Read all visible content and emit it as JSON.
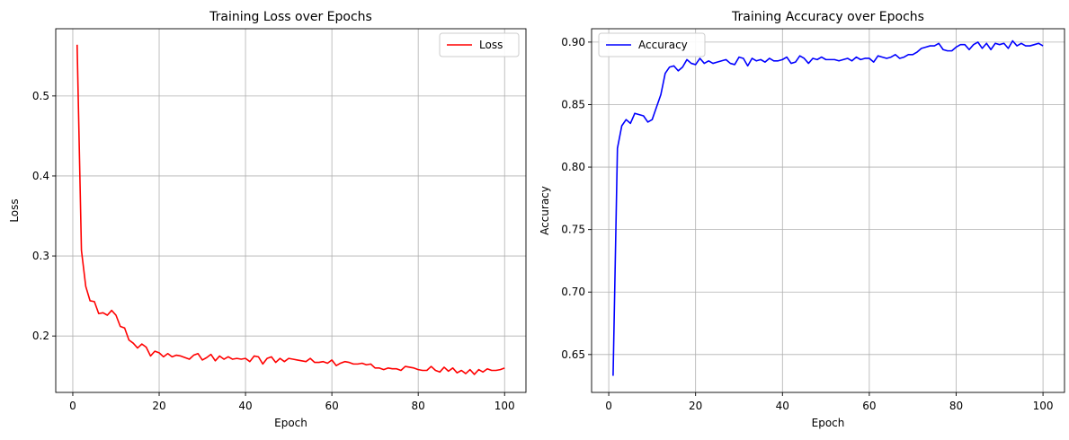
{
  "chart_data": [
    {
      "type": "line",
      "title": "Training Loss over Epochs",
      "xlabel": "Epoch",
      "ylabel": "Loss",
      "xlim": [
        -3.95,
        104.95
      ],
      "ylim": [
        0.1295,
        0.584
      ],
      "xticks": [
        0,
        20,
        40,
        60,
        80,
        100
      ],
      "yticks": [
        0.2,
        0.3,
        0.4,
        0.5
      ],
      "xtick_labels": [
        "0",
        "20",
        "40",
        "60",
        "80",
        "100"
      ],
      "ytick_labels": [
        "0.2",
        "0.3",
        "0.4",
        "0.5"
      ],
      "grid": true,
      "legend_position": "top-right",
      "series": [
        {
          "name": "Loss",
          "color": "#ff0000",
          "x": [
            1,
            2,
            3,
            4,
            5,
            6,
            7,
            8,
            9,
            10,
            11,
            12,
            13,
            14,
            15,
            16,
            17,
            18,
            19,
            20,
            21,
            22,
            23,
            24,
            25,
            26,
            27,
            28,
            29,
            30,
            31,
            32,
            33,
            34,
            35,
            36,
            37,
            38,
            39,
            40,
            41,
            42,
            43,
            44,
            45,
            46,
            47,
            48,
            49,
            50,
            51,
            52,
            53,
            54,
            55,
            56,
            57,
            58,
            59,
            60,
            61,
            62,
            63,
            64,
            65,
            66,
            67,
            68,
            69,
            70,
            71,
            72,
            73,
            74,
            75,
            76,
            77,
            78,
            79,
            80,
            81,
            82,
            83,
            84,
            85,
            86,
            87,
            88,
            89,
            90,
            91,
            92,
            93,
            94,
            95,
            96,
            97,
            98,
            99,
            100
          ],
          "values": [
            0.564,
            0.307,
            0.262,
            0.244,
            0.243,
            0.228,
            0.229,
            0.226,
            0.232,
            0.226,
            0.212,
            0.21,
            0.195,
            0.191,
            0.185,
            0.19,
            0.186,
            0.175,
            0.181,
            0.179,
            0.174,
            0.178,
            0.174,
            0.176,
            0.175,
            0.173,
            0.171,
            0.176,
            0.178,
            0.17,
            0.173,
            0.177,
            0.169,
            0.175,
            0.171,
            0.174,
            0.171,
            0.172,
            0.171,
            0.172,
            0.168,
            0.175,
            0.174,
            0.165,
            0.172,
            0.174,
            0.167,
            0.172,
            0.168,
            0.172,
            0.171,
            0.17,
            0.169,
            0.168,
            0.172,
            0.167,
            0.167,
            0.168,
            0.166,
            0.17,
            0.163,
            0.166,
            0.168,
            0.167,
            0.165,
            0.165,
            0.166,
            0.164,
            0.165,
            0.16,
            0.16,
            0.158,
            0.16,
            0.159,
            0.159,
            0.157,
            0.162,
            0.161,
            0.16,
            0.158,
            0.157,
            0.157,
            0.162,
            0.157,
            0.155,
            0.161,
            0.156,
            0.16,
            0.154,
            0.157,
            0.153,
            0.158,
            0.152,
            0.158,
            0.155,
            0.159,
            0.157,
            0.157,
            0.158,
            0.16
          ]
        }
      ]
    },
    {
      "type": "line",
      "title": "Training Accuracy over Epochs",
      "xlabel": "Epoch",
      "ylabel": "Accuracy",
      "xlim": [
        -3.95,
        104.95
      ],
      "ylim": [
        0.6197,
        0.9107
      ],
      "xticks": [
        0,
        20,
        40,
        60,
        80,
        100
      ],
      "yticks": [
        0.65,
        0.7,
        0.75,
        0.8,
        0.85,
        0.9
      ],
      "xtick_labels": [
        "0",
        "20",
        "40",
        "60",
        "80",
        "100"
      ],
      "ytick_labels": [
        "0.65",
        "0.70",
        "0.75",
        "0.80",
        "0.85",
        "0.90"
      ],
      "grid": true,
      "legend_position": "top-left",
      "series": [
        {
          "name": "Accuracy",
          "color": "#0000ff",
          "x": [
            1,
            2,
            3,
            4,
            5,
            6,
            7,
            8,
            9,
            10,
            11,
            12,
            13,
            14,
            15,
            16,
            17,
            18,
            19,
            20,
            21,
            22,
            23,
            24,
            25,
            26,
            27,
            28,
            29,
            30,
            31,
            32,
            33,
            34,
            35,
            36,
            37,
            38,
            39,
            40,
            41,
            42,
            43,
            44,
            45,
            46,
            47,
            48,
            49,
            50,
            51,
            52,
            53,
            54,
            55,
            56,
            57,
            58,
            59,
            60,
            61,
            62,
            63,
            64,
            65,
            66,
            67,
            68,
            69,
            70,
            71,
            72,
            73,
            74,
            75,
            76,
            77,
            78,
            79,
            80,
            81,
            82,
            83,
            84,
            85,
            86,
            87,
            88,
            89,
            90,
            91,
            92,
            93,
            94,
            95,
            96,
            97,
            98,
            99,
            100
          ],
          "values": [
            0.633,
            0.815,
            0.833,
            0.838,
            0.835,
            0.843,
            0.842,
            0.841,
            0.836,
            0.838,
            0.848,
            0.858,
            0.875,
            0.88,
            0.881,
            0.877,
            0.88,
            0.886,
            0.883,
            0.882,
            0.887,
            0.883,
            0.885,
            0.883,
            0.884,
            0.885,
            0.886,
            0.883,
            0.882,
            0.888,
            0.887,
            0.881,
            0.887,
            0.885,
            0.886,
            0.884,
            0.887,
            0.885,
            0.885,
            0.886,
            0.888,
            0.883,
            0.884,
            0.889,
            0.887,
            0.883,
            0.887,
            0.886,
            0.888,
            0.886,
            0.886,
            0.886,
            0.885,
            0.886,
            0.887,
            0.885,
            0.888,
            0.886,
            0.887,
            0.887,
            0.884,
            0.889,
            0.888,
            0.887,
            0.888,
            0.89,
            0.887,
            0.888,
            0.89,
            0.89,
            0.892,
            0.895,
            0.896,
            0.897,
            0.897,
            0.899,
            0.894,
            0.893,
            0.893,
            0.896,
            0.898,
            0.898,
            0.894,
            0.898,
            0.9,
            0.895,
            0.899,
            0.894,
            0.899,
            0.898,
            0.899,
            0.895,
            0.901,
            0.897,
            0.899,
            0.897,
            0.897,
            0.898,
            0.899,
            0.897
          ]
        }
      ]
    }
  ]
}
